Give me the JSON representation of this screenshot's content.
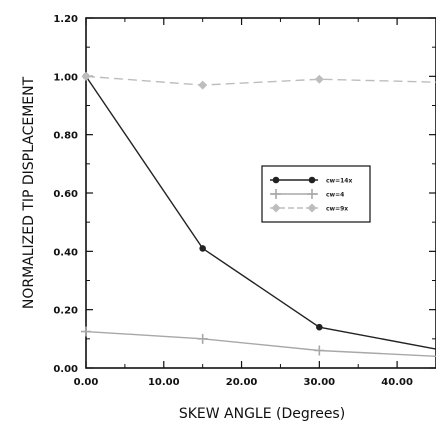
{
  "chart_data": {
    "type": "line",
    "xlabel": "SKEW ANGLE (Degrees)",
    "ylabel": "NORMALIZED TIP DISPLACEMENT",
    "xlim": [
      0,
      45
    ],
    "ylim": [
      0,
      1.2
    ],
    "x_ticks": [
      "0.00",
      "10.00",
      "20.00",
      "30.00",
      "40.00"
    ],
    "y_ticks": [
      "0.00",
      "0.20",
      "0.40",
      "0.60",
      "0.80",
      "1.00",
      "1.20"
    ],
    "grid": false,
    "legend_position": "center-right",
    "series": [
      {
        "name": "cw=14x",
        "color": "#222222",
        "dash": "solid",
        "marker": "dot",
        "x": [
          0,
          15,
          30,
          45
        ],
        "y": [
          1.0,
          0.41,
          0.14,
          0.065
        ]
      },
      {
        "name": "cw=4",
        "color": "#a8a8a8",
        "dash": "solid",
        "marker": "plus",
        "x": [
          0,
          15,
          30,
          45
        ],
        "y": [
          0.125,
          0.1,
          0.06,
          0.04
        ]
      },
      {
        "name": "cw=9x",
        "color": "#bdbdbd",
        "dash": "dashed",
        "marker": "diamond",
        "x": [
          0,
          15,
          30,
          45
        ],
        "y": [
          1.0,
          0.97,
          0.99,
          0.98
        ]
      }
    ]
  }
}
